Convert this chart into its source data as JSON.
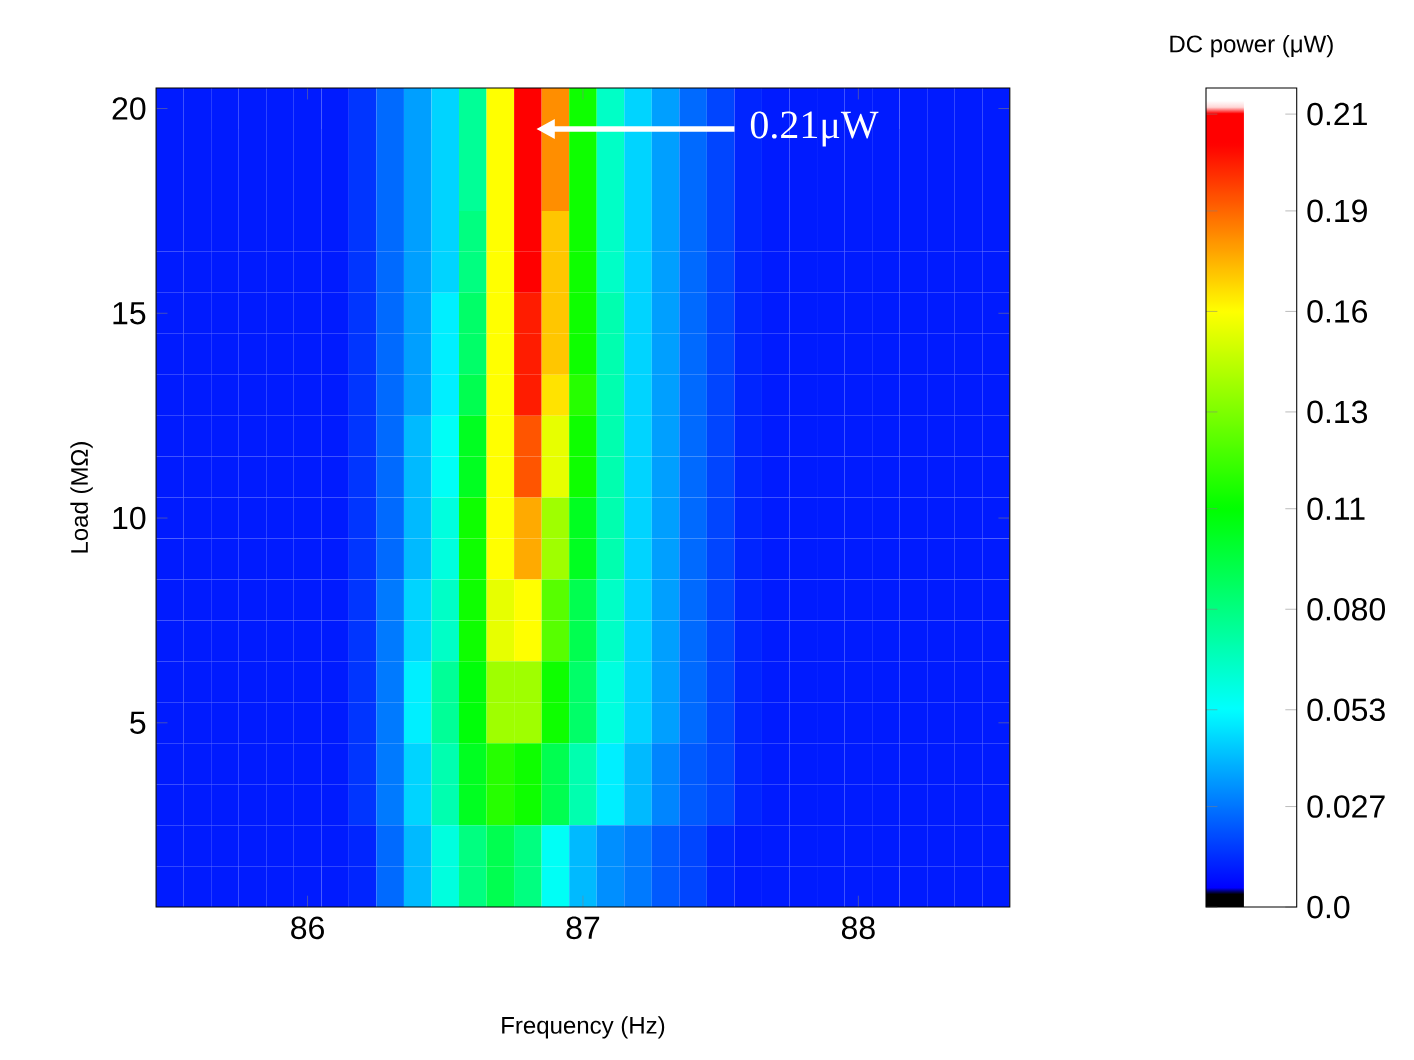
{
  "chart_data": {
    "type": "heatmap",
    "xlabel": "Frequency (Hz)",
    "ylabel": "Load (MΩ)",
    "clabel": "DC power (μW)",
    "categories": [
      null,
      null,
      null,
      null,
      null,
      "86",
      null,
      null,
      null,
      null,
      null,
      null,
      null,
      null,
      null,
      "87",
      null,
      null,
      null,
      null,
      null,
      null,
      null,
      null,
      null,
      "88",
      null,
      null,
      null,
      null,
      null
    ],
    "y_categories": [
      "20",
      null,
      null,
      null,
      null,
      "15",
      null,
      null,
      null,
      null,
      "10",
      null,
      null,
      null,
      null,
      "5",
      null,
      null,
      null,
      null
    ],
    "cells": [
      [
        0.01,
        0.01,
        0.01,
        0.01,
        0.01,
        0.01,
        0.01,
        0.015,
        0.025,
        0.035,
        0.045,
        0.075,
        0.16,
        0.21,
        0.18,
        0.11,
        0.065,
        0.045,
        0.035,
        0.025,
        0.018,
        0.012,
        0.01,
        0.01,
        0.01,
        0.01,
        0.01,
        0.01,
        0.01,
        0.01,
        0.01
      ],
      [
        0.01,
        0.01,
        0.01,
        0.01,
        0.01,
        0.01,
        0.01,
        0.015,
        0.025,
        0.035,
        0.045,
        0.075,
        0.16,
        0.21,
        0.18,
        0.11,
        0.065,
        0.045,
        0.035,
        0.025,
        0.018,
        0.012,
        0.01,
        0.01,
        0.01,
        0.01,
        0.01,
        0.01,
        0.01,
        0.01,
        0.01
      ],
      [
        0.01,
        0.01,
        0.01,
        0.01,
        0.01,
        0.01,
        0.01,
        0.015,
        0.025,
        0.035,
        0.045,
        0.075,
        0.16,
        0.21,
        0.18,
        0.11,
        0.065,
        0.045,
        0.035,
        0.025,
        0.018,
        0.012,
        0.01,
        0.01,
        0.01,
        0.01,
        0.01,
        0.01,
        0.01,
        0.01,
        0.01
      ],
      [
        0.01,
        0.01,
        0.01,
        0.01,
        0.01,
        0.01,
        0.01,
        0.015,
        0.025,
        0.035,
        0.045,
        0.08,
        0.16,
        0.21,
        0.17,
        0.11,
        0.065,
        0.045,
        0.035,
        0.025,
        0.018,
        0.012,
        0.01,
        0.01,
        0.01,
        0.01,
        0.01,
        0.01,
        0.01,
        0.01,
        0.01
      ],
      [
        0.01,
        0.01,
        0.01,
        0.01,
        0.01,
        0.01,
        0.01,
        0.015,
        0.025,
        0.035,
        0.045,
        0.08,
        0.16,
        0.21,
        0.17,
        0.11,
        0.065,
        0.045,
        0.035,
        0.025,
        0.018,
        0.012,
        0.01,
        0.01,
        0.01,
        0.01,
        0.01,
        0.01,
        0.01,
        0.01,
        0.01
      ],
      [
        0.01,
        0.01,
        0.01,
        0.01,
        0.01,
        0.01,
        0.01,
        0.015,
        0.025,
        0.035,
        0.05,
        0.085,
        0.16,
        0.2,
        0.17,
        0.11,
        0.07,
        0.045,
        0.035,
        0.025,
        0.018,
        0.012,
        0.01,
        0.01,
        0.01,
        0.01,
        0.01,
        0.01,
        0.01,
        0.01,
        0.01
      ],
      [
        0.01,
        0.01,
        0.01,
        0.01,
        0.01,
        0.01,
        0.01,
        0.015,
        0.025,
        0.035,
        0.05,
        0.085,
        0.16,
        0.2,
        0.17,
        0.11,
        0.07,
        0.045,
        0.035,
        0.025,
        0.018,
        0.012,
        0.01,
        0.01,
        0.01,
        0.01,
        0.01,
        0.01,
        0.01,
        0.01,
        0.01
      ],
      [
        0.01,
        0.01,
        0.01,
        0.01,
        0.01,
        0.01,
        0.01,
        0.015,
        0.025,
        0.035,
        0.05,
        0.09,
        0.16,
        0.2,
        0.165,
        0.115,
        0.07,
        0.045,
        0.035,
        0.025,
        0.018,
        0.012,
        0.01,
        0.01,
        0.01,
        0.01,
        0.01,
        0.01,
        0.01,
        0.01,
        0.01
      ],
      [
        0.01,
        0.01,
        0.01,
        0.01,
        0.01,
        0.01,
        0.01,
        0.015,
        0.025,
        0.04,
        0.055,
        0.1,
        0.16,
        0.19,
        0.155,
        0.11,
        0.07,
        0.045,
        0.035,
        0.025,
        0.018,
        0.012,
        0.01,
        0.01,
        0.01,
        0.01,
        0.01,
        0.01,
        0.01,
        0.01,
        0.01
      ],
      [
        0.01,
        0.01,
        0.01,
        0.01,
        0.01,
        0.01,
        0.01,
        0.015,
        0.025,
        0.04,
        0.055,
        0.1,
        0.16,
        0.19,
        0.155,
        0.11,
        0.07,
        0.045,
        0.035,
        0.025,
        0.018,
        0.012,
        0.01,
        0.01,
        0.01,
        0.01,
        0.01,
        0.01,
        0.01,
        0.01,
        0.01
      ],
      [
        0.01,
        0.01,
        0.01,
        0.01,
        0.01,
        0.01,
        0.01,
        0.015,
        0.025,
        0.04,
        0.06,
        0.11,
        0.16,
        0.175,
        0.14,
        0.1,
        0.07,
        0.045,
        0.035,
        0.025,
        0.018,
        0.012,
        0.01,
        0.01,
        0.01,
        0.01,
        0.01,
        0.01,
        0.01,
        0.01,
        0.01
      ],
      [
        0.01,
        0.01,
        0.01,
        0.01,
        0.01,
        0.01,
        0.01,
        0.015,
        0.025,
        0.04,
        0.06,
        0.11,
        0.16,
        0.175,
        0.14,
        0.1,
        0.07,
        0.045,
        0.035,
        0.025,
        0.018,
        0.012,
        0.01,
        0.01,
        0.01,
        0.01,
        0.01,
        0.01,
        0.01,
        0.01,
        0.01
      ],
      [
        0.01,
        0.01,
        0.01,
        0.01,
        0.01,
        0.01,
        0.01,
        0.015,
        0.028,
        0.045,
        0.065,
        0.11,
        0.155,
        0.16,
        0.125,
        0.09,
        0.065,
        0.045,
        0.035,
        0.025,
        0.018,
        0.012,
        0.01,
        0.01,
        0.01,
        0.01,
        0.01,
        0.01,
        0.01,
        0.01,
        0.01
      ],
      [
        0.01,
        0.01,
        0.01,
        0.01,
        0.01,
        0.01,
        0.01,
        0.015,
        0.028,
        0.045,
        0.065,
        0.11,
        0.155,
        0.16,
        0.125,
        0.09,
        0.065,
        0.045,
        0.035,
        0.025,
        0.018,
        0.012,
        0.01,
        0.01,
        0.01,
        0.01,
        0.01,
        0.01,
        0.01,
        0.01,
        0.01
      ],
      [
        0.01,
        0.01,
        0.01,
        0.01,
        0.01,
        0.01,
        0.01,
        0.015,
        0.028,
        0.05,
        0.075,
        0.105,
        0.14,
        0.14,
        0.11,
        0.085,
        0.06,
        0.045,
        0.035,
        0.025,
        0.018,
        0.012,
        0.01,
        0.01,
        0.01,
        0.01,
        0.01,
        0.01,
        0.01,
        0.01,
        0.01
      ],
      [
        0.01,
        0.01,
        0.01,
        0.01,
        0.01,
        0.01,
        0.01,
        0.015,
        0.028,
        0.05,
        0.075,
        0.105,
        0.14,
        0.14,
        0.11,
        0.085,
        0.06,
        0.045,
        0.035,
        0.025,
        0.018,
        0.012,
        0.01,
        0.01,
        0.01,
        0.01,
        0.01,
        0.01,
        0.01,
        0.01,
        0.01
      ],
      [
        0.01,
        0.01,
        0.01,
        0.01,
        0.01,
        0.01,
        0.01,
        0.015,
        0.028,
        0.045,
        0.07,
        0.1,
        0.115,
        0.11,
        0.09,
        0.07,
        0.05,
        0.04,
        0.03,
        0.022,
        0.018,
        0.012,
        0.01,
        0.01,
        0.01,
        0.01,
        0.01,
        0.01,
        0.01,
        0.01,
        0.01
      ],
      [
        0.01,
        0.01,
        0.01,
        0.01,
        0.01,
        0.01,
        0.01,
        0.015,
        0.028,
        0.045,
        0.07,
        0.1,
        0.115,
        0.11,
        0.09,
        0.07,
        0.05,
        0.04,
        0.03,
        0.022,
        0.018,
        0.012,
        0.01,
        0.01,
        0.01,
        0.01,
        0.01,
        0.01,
        0.01,
        0.01,
        0.01
      ],
      [
        0.01,
        0.01,
        0.01,
        0.01,
        0.01,
        0.01,
        0.01,
        0.012,
        0.025,
        0.04,
        0.06,
        0.08,
        0.09,
        0.08,
        0.055,
        0.04,
        0.032,
        0.028,
        0.022,
        0.018,
        0.012,
        0.01,
        0.01,
        0.01,
        0.01,
        0.01,
        0.01,
        0.01,
        0.01,
        0.01,
        0.01
      ],
      [
        0.01,
        0.01,
        0.01,
        0.01,
        0.01,
        0.01,
        0.01,
        0.012,
        0.025,
        0.04,
        0.06,
        0.08,
        0.09,
        0.08,
        0.055,
        0.04,
        0.032,
        0.028,
        0.022,
        0.018,
        0.012,
        0.01,
        0.01,
        0.01,
        0.01,
        0.01,
        0.01,
        0.01,
        0.01,
        0.01,
        0.01
      ]
    ],
    "clim": [
      0,
      0.22
    ],
    "cticks": [
      {
        "value": 0,
        "label": "0.0"
      },
      0.027,
      0.053,
      {
        "value": 0.08,
        "label": "0.080"
      },
      {
        "value": 0.107,
        "label": "0.11"
      },
      {
        "value": 0.133,
        "label": "0.13"
      },
      0.16,
      {
        "value": 0.187,
        "label": "0.19"
      },
      {
        "value": 0.213,
        "label": "0.21"
      }
    ],
    "annotations": [
      "0.21μW"
    ]
  }
}
